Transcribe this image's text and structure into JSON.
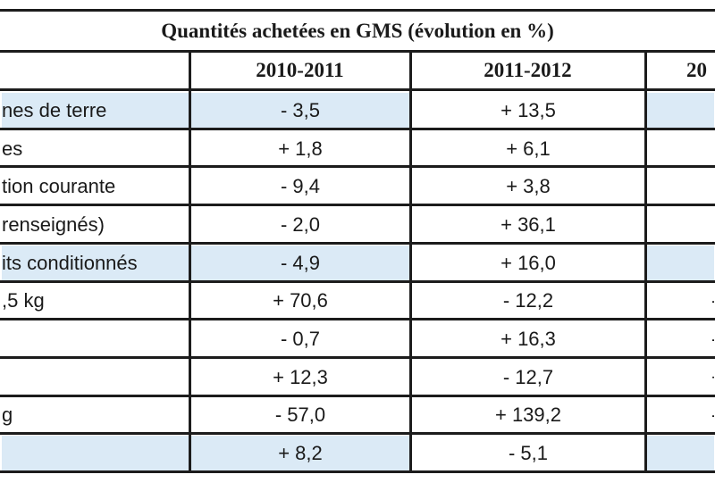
{
  "table": {
    "title": "Quantités achetées en GMS (évolution en %)",
    "columns": [
      "",
      "2010-2011",
      "2011-2012",
      "20"
    ],
    "rows": [
      {
        "label": "nes de terre",
        "v1": "- 3,5",
        "v2": "+ 13,5",
        "v3": "",
        "highlight": true
      },
      {
        "label": "es",
        "v1": "+ 1,8",
        "v2": "+ 6,1",
        "v3": "",
        "highlight": false
      },
      {
        "label": "tion courante",
        "v1": "- 9,4",
        "v2": "+ 3,8",
        "v3": "",
        "highlight": false
      },
      {
        "label": " renseignés)",
        "v1": "- 2,0",
        "v2": "+ 36,1",
        "v3": "",
        "highlight": false
      },
      {
        "label": "its conditionnés",
        "v1": "- 4,9",
        "v2": "+ 16,0",
        "v3": "",
        "highlight": true
      },
      {
        "label": ",5 kg",
        "v1": "+ 70,6",
        "v2": "- 12,2",
        "v3": "-",
        "highlight": false
      },
      {
        "label": "",
        "v1": "- 0,7",
        "v2": "+ 16,3",
        "v3": "-",
        "highlight": false
      },
      {
        "label": "",
        "v1": "+ 12,3",
        "v2": "- 12,7",
        "v3": "+",
        "highlight": false
      },
      {
        "label": "g",
        "v1": "- 57,0",
        "v2": "+ 139,2",
        "v3": "-",
        "highlight": false
      },
      {
        "label": "",
        "v1": "+ 8,2",
        "v2": "- 5,1",
        "v3": "",
        "highlight": true
      }
    ]
  }
}
